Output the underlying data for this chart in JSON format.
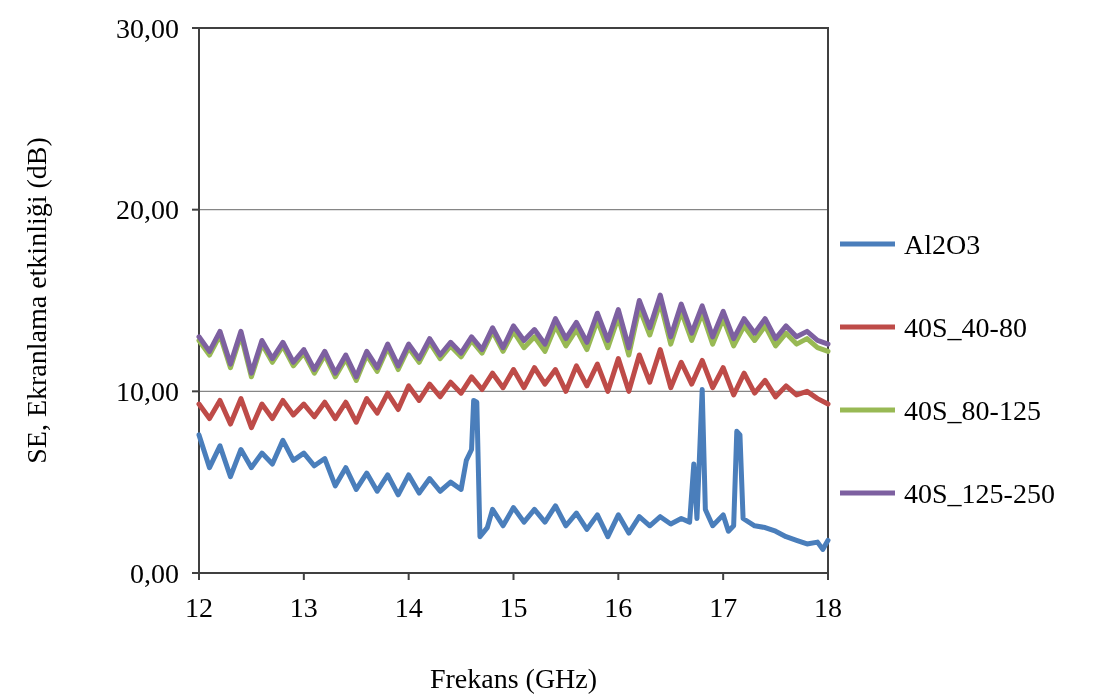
{
  "chart_data": {
    "type": "line",
    "xlabel": "Frekans (GHz)",
    "ylabel": "SE, Ekranlama etkinliği (dB)",
    "xlim": [
      12,
      18
    ],
    "xticks": [
      12,
      13,
      14,
      15,
      16,
      17,
      18
    ],
    "ylim": [
      0,
      30
    ],
    "yticks": [
      {
        "value": 0,
        "label": "0,00"
      },
      {
        "value": 10,
        "label": "10,00"
      },
      {
        "value": 20,
        "label": "20,00"
      },
      {
        "value": 30,
        "label": "30,00"
      }
    ],
    "grid": "y",
    "legend": "right",
    "marker": "none",
    "line_style": "solid",
    "x": [
      12.0,
      12.1,
      12.2,
      12.3,
      12.4,
      12.5,
      12.6,
      12.7,
      12.8,
      12.9,
      13.0,
      13.1,
      13.2,
      13.3,
      13.4,
      13.5,
      13.6,
      13.7,
      13.8,
      13.9,
      14.0,
      14.1,
      14.2,
      14.3,
      14.4,
      14.5,
      14.6,
      14.7,
      14.8,
      14.9,
      15.0,
      15.1,
      15.2,
      15.3,
      15.4,
      15.5,
      15.6,
      15.7,
      15.8,
      15.9,
      16.0,
      16.1,
      16.2,
      16.3,
      16.4,
      16.5,
      16.6,
      16.7,
      16.8,
      16.9,
      17.0,
      17.1,
      17.2,
      17.3,
      17.4,
      17.5,
      17.6,
      17.7,
      17.8,
      17.9,
      18.0
    ],
    "series": [
      {
        "name": "Al2O3",
        "color": "#4a7ebb",
        "x": [
          12.0,
          12.1,
          12.2,
          12.3,
          12.4,
          12.5,
          12.6,
          12.7,
          12.8,
          12.9,
          13.0,
          13.1,
          13.2,
          13.3,
          13.4,
          13.5,
          13.6,
          13.7,
          13.8,
          13.9,
          14.0,
          14.1,
          14.2,
          14.3,
          14.4,
          14.5,
          14.55,
          14.6,
          14.62,
          14.65,
          14.68,
          14.75,
          14.8,
          14.9,
          15.0,
          15.1,
          15.2,
          15.3,
          15.4,
          15.5,
          15.6,
          15.7,
          15.8,
          15.9,
          16.0,
          16.1,
          16.2,
          16.3,
          16.4,
          16.5,
          16.6,
          16.68,
          16.72,
          16.75,
          16.8,
          16.83,
          16.9,
          17.0,
          17.05,
          17.1,
          17.13,
          17.16,
          17.19,
          17.3,
          17.4,
          17.5,
          17.6,
          17.7,
          17.8,
          17.9,
          17.95,
          18.0
        ],
        "values": [
          7.6,
          5.8,
          7.0,
          5.3,
          6.8,
          5.8,
          6.6,
          6.0,
          7.3,
          6.2,
          6.6,
          5.9,
          6.3,
          4.8,
          5.8,
          4.6,
          5.5,
          4.5,
          5.4,
          4.3,
          5.4,
          4.4,
          5.2,
          4.5,
          5.0,
          4.6,
          6.2,
          6.8,
          9.5,
          9.4,
          2.0,
          2.5,
          3.5,
          2.6,
          3.6,
          2.8,
          3.5,
          2.8,
          3.7,
          2.6,
          3.3,
          2.4,
          3.2,
          2.0,
          3.2,
          2.2,
          3.1,
          2.6,
          3.1,
          2.7,
          3.0,
          2.8,
          6.0,
          3.0,
          10.1,
          3.5,
          2.6,
          3.2,
          2.3,
          2.6,
          7.8,
          7.6,
          3.0,
          2.6,
          2.5,
          2.3,
          2.0,
          1.8,
          1.6,
          1.7,
          1.3,
          1.8
        ]
      },
      {
        "name": "40S_40-80",
        "color": "#be4b48",
        "values": [
          9.3,
          8.5,
          9.5,
          8.2,
          9.6,
          8.0,
          9.3,
          8.5,
          9.5,
          8.7,
          9.3,
          8.6,
          9.4,
          8.5,
          9.4,
          8.3,
          9.6,
          8.8,
          9.9,
          9.0,
          10.3,
          9.5,
          10.4,
          9.7,
          10.5,
          9.9,
          10.8,
          10.1,
          11.0,
          10.2,
          11.2,
          10.2,
          11.3,
          10.4,
          11.2,
          10.0,
          11.4,
          10.3,
          11.5,
          10.0,
          11.8,
          10.0,
          12.0,
          10.5,
          12.3,
          10.2,
          11.6,
          10.4,
          11.7,
          10.2,
          11.3,
          9.8,
          11.0,
          9.9,
          10.6,
          9.7,
          10.3,
          9.8,
          10.0,
          9.6,
          9.3
        ]
      },
      {
        "name": "40S_80-125",
        "color": "#98b954",
        "values": [
          12.8,
          12.0,
          13.1,
          11.3,
          13.1,
          10.8,
          12.6,
          11.6,
          12.5,
          11.4,
          12.1,
          11.0,
          12.0,
          10.8,
          11.8,
          10.6,
          12.0,
          11.1,
          12.4,
          11.2,
          12.4,
          11.6,
          12.7,
          11.8,
          12.5,
          11.9,
          12.8,
          12.1,
          13.3,
          12.2,
          13.3,
          12.4,
          13.0,
          12.2,
          13.6,
          12.5,
          13.4,
          12.3,
          13.9,
          12.4,
          14.1,
          12.0,
          14.6,
          13.1,
          14.9,
          12.6,
          14.4,
          12.8,
          14.3,
          12.6,
          14.0,
          12.5,
          13.6,
          12.8,
          13.6,
          12.5,
          13.2,
          12.6,
          12.9,
          12.4,
          12.2
        ]
      },
      {
        "name": "40S_125-250",
        "color": "#7d60a0",
        "values": [
          13.0,
          12.2,
          13.3,
          11.5,
          13.3,
          11.0,
          12.8,
          11.8,
          12.7,
          11.6,
          12.3,
          11.2,
          12.2,
          11.0,
          12.0,
          10.8,
          12.2,
          11.3,
          12.6,
          11.4,
          12.6,
          11.8,
          12.9,
          12.0,
          12.7,
          12.1,
          13.0,
          12.3,
          13.5,
          12.4,
          13.6,
          12.8,
          13.4,
          12.6,
          14.0,
          12.9,
          13.8,
          12.7,
          14.3,
          12.8,
          14.5,
          12.4,
          15.0,
          13.5,
          15.3,
          13.0,
          14.8,
          13.2,
          14.7,
          13.0,
          14.4,
          12.9,
          14.0,
          13.2,
          14.0,
          12.9,
          13.6,
          13.0,
          13.3,
          12.8,
          12.6
        ]
      }
    ]
  }
}
